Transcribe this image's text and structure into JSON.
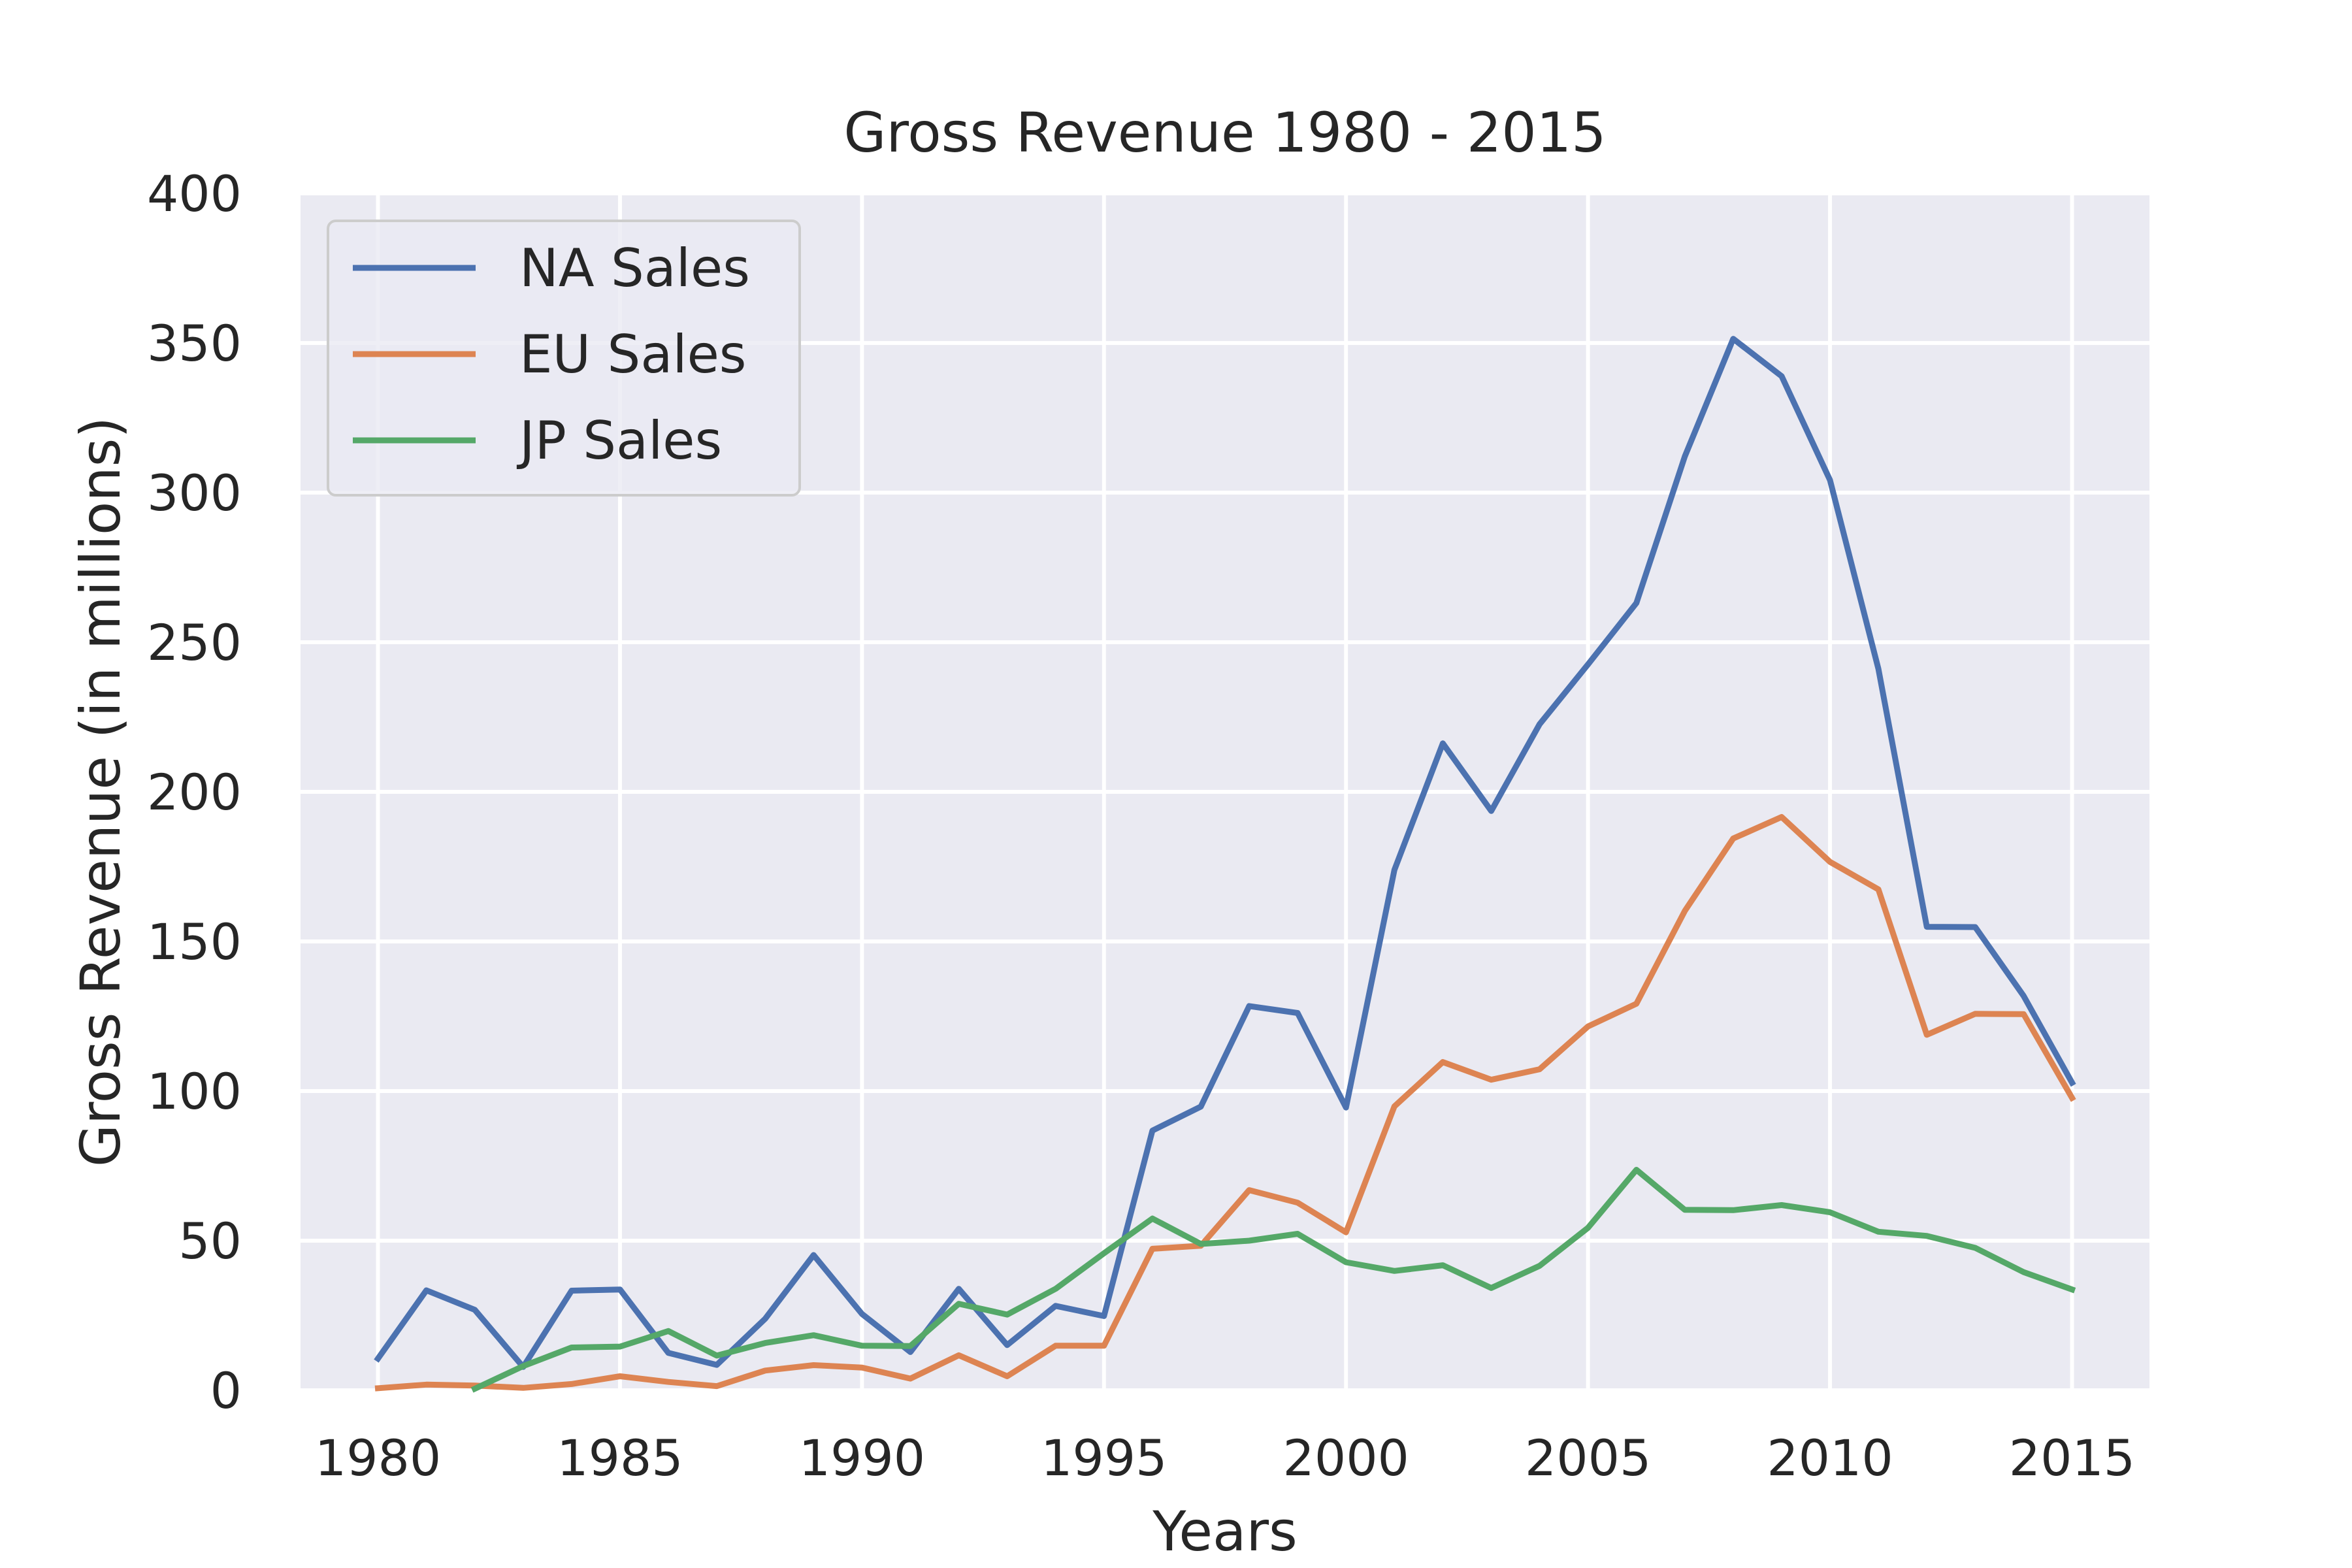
{
  "chart_data": {
    "type": "line",
    "title": "Gross Revenue 1980 - 2015",
    "xlabel": "Years",
    "ylabel": "Gross Revenue (in millions)",
    "xlim": [
      1978.4,
      2016.6
    ],
    "ylim": [
      0,
      400
    ],
    "xticks": [
      1980,
      1985,
      1990,
      1995,
      2000,
      2005,
      2010,
      2015
    ],
    "yticks": [
      0,
      50,
      100,
      150,
      200,
      250,
      300,
      350,
      400
    ],
    "grid": true,
    "legend_position": "upper-left",
    "background_color": "#eaeaf2",
    "x": [
      1980,
      1981,
      1982,
      1983,
      1984,
      1985,
      1986,
      1987,
      1988,
      1989,
      1990,
      1991,
      1992,
      1993,
      1994,
      1995,
      1996,
      1997,
      1998,
      1999,
      2000,
      2001,
      2002,
      2003,
      2004,
      2005,
      2006,
      2007,
      2008,
      2009,
      2010,
      2011,
      2012,
      2013,
      2014,
      2015
    ],
    "series": [
      {
        "name": "NA Sales",
        "color": "#4c72b0",
        "values": [
          10.6,
          33.4,
          26.9,
          7.8,
          33.3,
          33.7,
          12.5,
          8.5,
          23.9,
          45.2,
          25.5,
          12.8,
          33.9,
          15.1,
          28.2,
          24.8,
          86.8,
          94.8,
          128.4,
          126.1,
          94.5,
          173.9,
          216.2,
          193.6,
          222.6,
          242.6,
          263.1,
          312.1,
          351.4,
          338.9,
          304.2,
          241.1,
          154.9,
          154.8,
          131.8,
          102.8
        ]
      },
      {
        "name": "EU Sales",
        "color": "#dd8452",
        "values": [
          0.7,
          1.9,
          1.6,
          0.8,
          2.1,
          4.7,
          2.8,
          1.4,
          6.6,
          8.4,
          7.6,
          3.9,
          11.7,
          4.7,
          14.9,
          14.9,
          47.3,
          48.3,
          66.9,
          62.7,
          52.8,
          94.9,
          109.7,
          103.8,
          107.3,
          121.6,
          129.2,
          160.2,
          184.4,
          191.6,
          176.6,
          167.4,
          118.8,
          125.8,
          125.7,
          97.7
        ]
      },
      {
        "name": "JP Sales",
        "color": "#55a868",
        "values": [
          null,
          null,
          0.5,
          8.1,
          14.3,
          14.6,
          19.8,
          11.6,
          15.8,
          18.4,
          14.9,
          14.8,
          28.9,
          25.3,
          33.9,
          45.8,
          57.4,
          48.9,
          50.0,
          52.3,
          42.8,
          39.9,
          41.8,
          34.2,
          41.6,
          54.3,
          73.7,
          60.3,
          60.2,
          61.9,
          59.5,
          53.0,
          51.6,
          47.6,
          39.5,
          33.7
        ]
      }
    ]
  }
}
